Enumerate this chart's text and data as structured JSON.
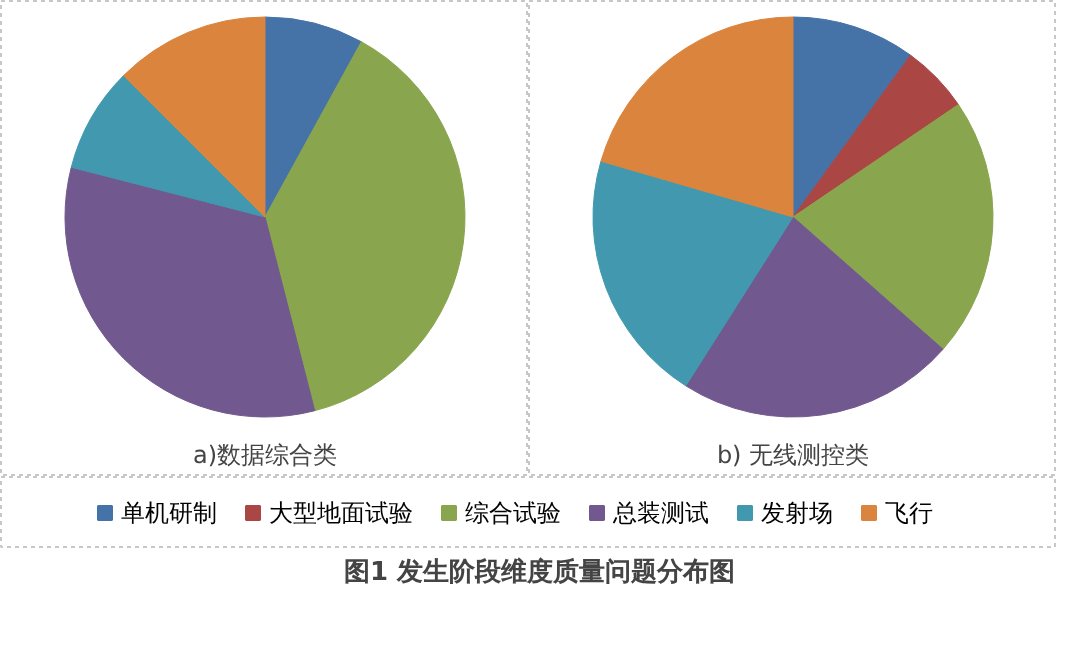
{
  "chart_data": [
    {
      "type": "pie",
      "title": "a)数据综合类",
      "categories": [
        "单机研制",
        "大型地面试验",
        "综合试验",
        "总装测试",
        "发射场",
        "飞行"
      ],
      "values": [
        8,
        0,
        38,
        33,
        8.5,
        12.5
      ],
      "colors": [
        "#4572a7",
        "#aa4643",
        "#89a54e",
        "#71588f",
        "#4198af",
        "#db843d"
      ],
      "legend": "bottom",
      "annotations": [
        "图1  发生阶段维度质量问题分布图"
      ]
    },
    {
      "type": "pie",
      "title": "b) 无线测控类",
      "categories": [
        null,
        null,
        null,
        null,
        null,
        null
      ],
      "values": [
        10,
        5.5,
        21,
        22.5,
        20.5,
        20.5
      ],
      "colors": [
        "#4572a7",
        "#aa4643",
        "#89a54e",
        "#71588f",
        "#4198af",
        "#db843d"
      ]
    }
  ]
}
